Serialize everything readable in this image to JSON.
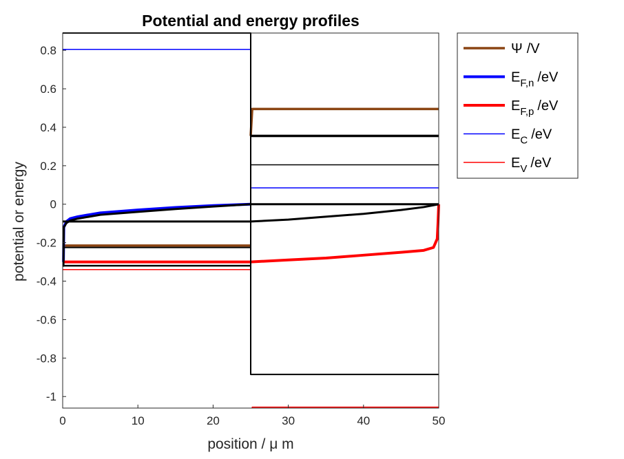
{
  "chart_data": {
    "type": "line",
    "title": "Potential and energy profiles",
    "xlabel": "position / μ m",
    "ylabel": "potential or energy",
    "xlim": [
      0,
      50
    ],
    "ylim": [
      -1.06,
      0.89
    ],
    "xticks": [
      0,
      10,
      20,
      30,
      40,
      50
    ],
    "yticks": [
      -1,
      -0.8,
      -0.6,
      -0.4,
      -0.2,
      0,
      0.2,
      0.4,
      0.6,
      0.8
    ],
    "xtick_labels": [
      "0",
      "10",
      "20",
      "30",
      "40",
      "50"
    ],
    "ytick_labels": [
      "-1",
      "-0.8",
      "-0.6",
      "-0.4",
      "-0.2",
      "0",
      "0.2",
      "0.4",
      "0.6",
      "0.8"
    ],
    "legend_position": "outside-top-right",
    "legend": [
      {
        "text": "Ψ /V",
        "base": "Ψ",
        "sub": "",
        "unit": "/V",
        "color": "#8b4513",
        "width": 3.5
      },
      {
        "text": "E_F,n /eV",
        "base": "E",
        "sub": "F,n",
        "unit": "/eV",
        "color": "#0000ff",
        "width": 4
      },
      {
        "text": "E_F,p /eV",
        "base": "E",
        "sub": "F,p",
        "unit": "/eV",
        "color": "#ff0000",
        "width": 4
      },
      {
        "text": "E_C /eV",
        "base": "E",
        "sub": "C",
        "unit": "/eV",
        "color": "#0000ff",
        "width": 1.5
      },
      {
        "text": "E_V /eV",
        "base": "E",
        "sub": "V",
        "unit": "/eV",
        "color": "#ff0000",
        "width": 1.5
      }
    ],
    "series": [
      {
        "name": "E_C region 1",
        "color": "#0000ff",
        "width": 1.5,
        "points": [
          [
            0,
            0.805
          ],
          [
            25,
            0.805
          ],
          [
            25,
            0.81
          ]
        ]
      },
      {
        "name": "E_V region 1",
        "color": "#ff0000",
        "width": 1.5,
        "points": [
          [
            0,
            -0.34
          ],
          [
            25,
            -0.34
          ]
        ]
      },
      {
        "name": "E_C region 2",
        "color": "#0000ff",
        "width": 1.5,
        "points": [
          [
            25.1,
            0.085
          ],
          [
            50,
            0.085
          ]
        ]
      },
      {
        "name": "E_V region 2",
        "color": "#ff0000",
        "width": 1.5,
        "points": [
          [
            25.2,
            -1.06
          ],
          [
            25.2,
            -1.055
          ],
          [
            50,
            -1.055
          ]
        ]
      },
      {
        "name": "Psi region 1",
        "color": "#8b4513",
        "width": 3.5,
        "points": [
          [
            0,
            -0.215
          ],
          [
            25,
            -0.215
          ]
        ]
      },
      {
        "name": "Psi region 2",
        "color": "#8b4513",
        "width": 3.5,
        "points": [
          [
            25,
            0.355
          ],
          [
            25.2,
            0.495
          ],
          [
            50,
            0.495
          ]
        ]
      },
      {
        "name": "E_F,n",
        "color": "#0000ff",
        "width": 4,
        "points": [
          [
            0,
            -0.3
          ],
          [
            0.1,
            -0.3
          ],
          [
            0.15,
            -0.12
          ],
          [
            0.5,
            -0.09
          ],
          [
            1,
            -0.075
          ],
          [
            2,
            -0.065
          ],
          [
            5,
            -0.045
          ],
          [
            10,
            -0.03
          ],
          [
            15,
            -0.017
          ],
          [
            20,
            -0.007
          ],
          [
            25,
            0
          ]
        ]
      },
      {
        "name": "E_F,p",
        "color": "#ff0000",
        "width": 4,
        "points": [
          [
            0,
            -0.3
          ],
          [
            25,
            -0.3
          ],
          [
            30,
            -0.29
          ],
          [
            35,
            -0.28
          ],
          [
            40,
            -0.265
          ],
          [
            45,
            -0.25
          ],
          [
            48,
            -0.24
          ],
          [
            49.3,
            -0.225
          ],
          [
            49.8,
            -0.18
          ],
          [
            49.9,
            -0.1
          ],
          [
            50,
            0
          ]
        ]
      },
      {
        "name": "black boundary",
        "color": "#000000",
        "width": 2,
        "points": [
          [
            0,
            0.89
          ],
          [
            25,
            0.89
          ],
          [
            25,
            -0.885
          ],
          [
            25.1,
            -0.885
          ],
          [
            25.1,
            -0.885
          ],
          [
            50,
            -0.885
          ]
        ]
      },
      {
        "name": "black level 1",
        "color": "#000000",
        "width": 2,
        "points": [
          [
            0,
            -0.225
          ],
          [
            25,
            -0.225
          ]
        ]
      },
      {
        "name": "black level 2",
        "color": "#000000",
        "width": 2.5,
        "points": [
          [
            0,
            -0.32
          ],
          [
            25,
            -0.32
          ]
        ]
      },
      {
        "name": "black level 3",
        "color": "#000000",
        "width": 1.5,
        "points": [
          [
            25,
            0.205
          ],
          [
            50,
            0.205
          ]
        ]
      },
      {
        "name": "black level 4",
        "color": "#000000",
        "width": 3.5,
        "points": [
          [
            25,
            0.355
          ],
          [
            50,
            0.355
          ]
        ]
      },
      {
        "name": "black curve region 1",
        "color": "#000000",
        "width": 3,
        "points": [
          [
            0,
            -0.32
          ],
          [
            0.1,
            -0.32
          ],
          [
            0.15,
            -0.12
          ],
          [
            0.5,
            -0.098
          ],
          [
            1,
            -0.085
          ],
          [
            2,
            -0.075
          ],
          [
            5,
            -0.055
          ],
          [
            10,
            -0.04
          ],
          [
            15,
            -0.025
          ],
          [
            20,
            -0.012
          ],
          [
            25,
            0
          ]
        ]
      },
      {
        "name": "black flat zero",
        "color": "#000000",
        "width": 3,
        "points": [
          [
            25,
            0
          ],
          [
            50,
            0
          ]
        ]
      },
      {
        "name": "black flat minus",
        "color": "#000000",
        "width": 3,
        "points": [
          [
            0,
            -0.09
          ],
          [
            25,
            -0.09
          ]
        ]
      },
      {
        "name": "black curve region 2",
        "color": "#000000",
        "width": 3,
        "points": [
          [
            25,
            -0.09
          ],
          [
            30,
            -0.08
          ],
          [
            35,
            -0.065
          ],
          [
            40,
            -0.05
          ],
          [
            45,
            -0.03
          ],
          [
            48,
            -0.015
          ],
          [
            50,
            0
          ]
        ]
      }
    ]
  }
}
